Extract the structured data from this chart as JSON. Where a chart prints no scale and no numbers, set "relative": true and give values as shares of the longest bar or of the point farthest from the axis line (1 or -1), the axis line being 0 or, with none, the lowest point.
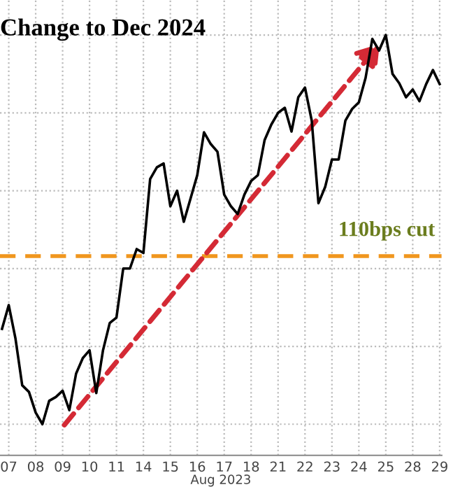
{
  "chart_data": {
    "type": "line",
    "title": "Change to Dec 2024",
    "xlabel": "Aug 2023",
    "relative": true,
    "grid": true,
    "marker": "none",
    "line_style": "solid",
    "categories": [
      null,
      "07",
      null,
      null,
      null,
      "08",
      null,
      null,
      null,
      "09",
      null,
      null,
      null,
      "10",
      null,
      null,
      null,
      "11",
      null,
      null,
      null,
      "14",
      null,
      null,
      null,
      "15",
      null,
      null,
      null,
      "16",
      null,
      null,
      null,
      "17",
      null,
      null,
      null,
      "18",
      null,
      null,
      null,
      "21",
      null,
      null,
      null,
      "22",
      null,
      null,
      null,
      "23",
      null,
      null,
      null,
      "24",
      null,
      null,
      null,
      "25",
      null,
      null,
      null,
      "28",
      null,
      null,
      null,
      "29"
    ],
    "series": [
      {
        "color": "#000000",
        "values": [
          0.245,
          0.306,
          0.22,
          0.1,
          0.083,
          0.03,
          0.0,
          0.06,
          0.07,
          0.086,
          0.036,
          0.13,
          0.17,
          0.19,
          0.08,
          0.19,
          0.26,
          0.274,
          0.4,
          0.4,
          0.45,
          0.44,
          0.63,
          0.66,
          0.67,
          0.56,
          0.6,
          0.52,
          0.58,
          0.64,
          0.75,
          0.72,
          0.7,
          0.59,
          0.56,
          0.54,
          0.59,
          0.625,
          0.64,
          0.73,
          0.77,
          0.8,
          0.813,
          0.752,
          0.84,
          0.865,
          0.78,
          0.568,
          0.61,
          0.68,
          0.68,
          0.78,
          0.81,
          0.827,
          0.89,
          0.99,
          0.96,
          1.0,
          0.9,
          0.876,
          0.84,
          0.86,
          0.83,
          0.874,
          0.91,
          0.874
        ]
      }
    ],
    "ref_lines": [
      {
        "axis": "y",
        "value": 0.432,
        "label": "110bps cut",
        "color": "#f0961e",
        "line_style": "dashed"
      }
    ]
  }
}
